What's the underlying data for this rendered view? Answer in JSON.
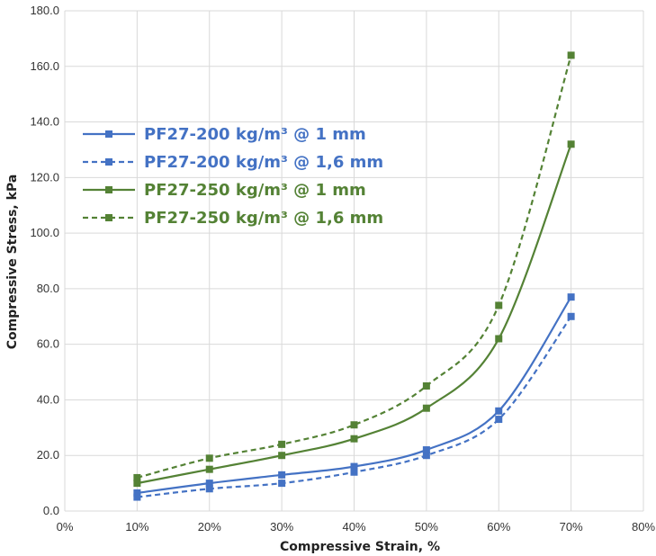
{
  "chart_data": {
    "type": "line",
    "xlabel": "Compressive Strain, %",
    "ylabel": "Compressive Stress, kPa",
    "x_ticks": [
      "0%",
      "10%",
      "20%",
      "30%",
      "40%",
      "50%",
      "60%",
      "70%",
      "80%"
    ],
    "y_ticks": [
      "0.0",
      "20.0",
      "40.0",
      "60.0",
      "80.0",
      "100.0",
      "120.0",
      "140.0",
      "160.0",
      "180.0"
    ],
    "xlim": [
      0,
      80
    ],
    "ylim": [
      0,
      180
    ],
    "grid": true,
    "legend_position": "upper-left",
    "x": [
      10,
      20,
      30,
      40,
      50,
      60,
      70
    ],
    "series": [
      {
        "name": "PF27-200 kg/m³ @ 1 mm",
        "color": "#4472C4",
        "dash": "solid",
        "values": [
          6.5,
          10,
          13,
          16,
          22,
          36,
          77
        ]
      },
      {
        "name": "PF27-200 kg/m³ @ 1,6 mm",
        "color": "#4472C4",
        "dash": "dashed",
        "values": [
          5,
          8,
          10,
          14,
          20,
          33,
          70
        ]
      },
      {
        "name": "PF27-250 kg/m³ @ 1 mm",
        "color": "#548235",
        "dash": "solid",
        "values": [
          10,
          15,
          20,
          26,
          37,
          62,
          132
        ]
      },
      {
        "name": "PF27-250 kg/m³ @ 1,6 mm",
        "color": "#548235",
        "dash": "dashed",
        "values": [
          12,
          19,
          24,
          31,
          45,
          74,
          164
        ]
      }
    ]
  }
}
